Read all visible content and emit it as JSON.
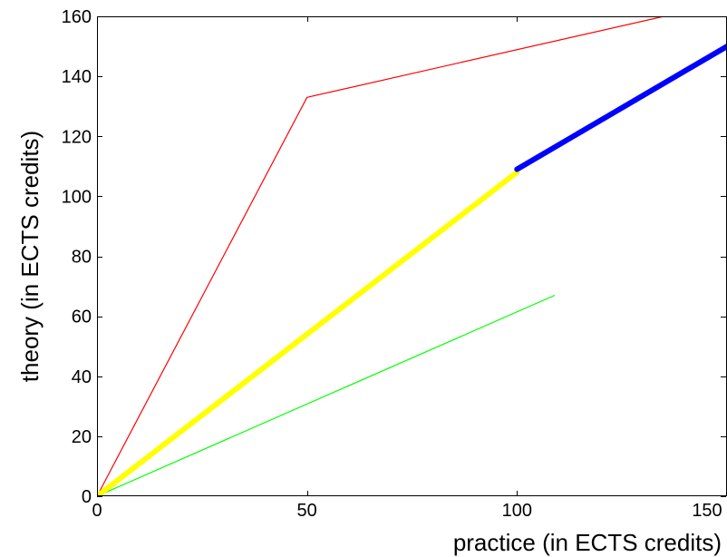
{
  "chart_data": {
    "type": "line",
    "title": "",
    "xlabel": "practice (in ECTS credits)",
    "ylabel": "theory (in ECTS credits)",
    "xlim": [
      0,
      150
    ],
    "ylim": [
      0,
      160
    ],
    "xticks": [
      0,
      50,
      100,
      150
    ],
    "yticks": [
      0,
      20,
      40,
      60,
      80,
      100,
      120,
      140,
      160
    ],
    "grid": false,
    "legend": "none",
    "series": [
      {
        "color": "#ff0000",
        "line_width": "thin",
        "points": [
          [
            0,
            0
          ],
          [
            50,
            133
          ],
          [
            135,
            160
          ]
        ]
      },
      {
        "color": "#00ff00",
        "line_width": "thin",
        "points": [
          [
            0,
            0
          ],
          [
            109,
            67
          ]
        ]
      },
      {
        "color": "#ffff00",
        "line_width": "thick",
        "points": [
          [
            0,
            0
          ],
          [
            100,
            108
          ]
        ]
      },
      {
        "color": "#0000ff",
        "line_width": "thick",
        "points": [
          [
            100,
            109
          ],
          [
            150,
            150
          ]
        ]
      }
    ]
  }
}
